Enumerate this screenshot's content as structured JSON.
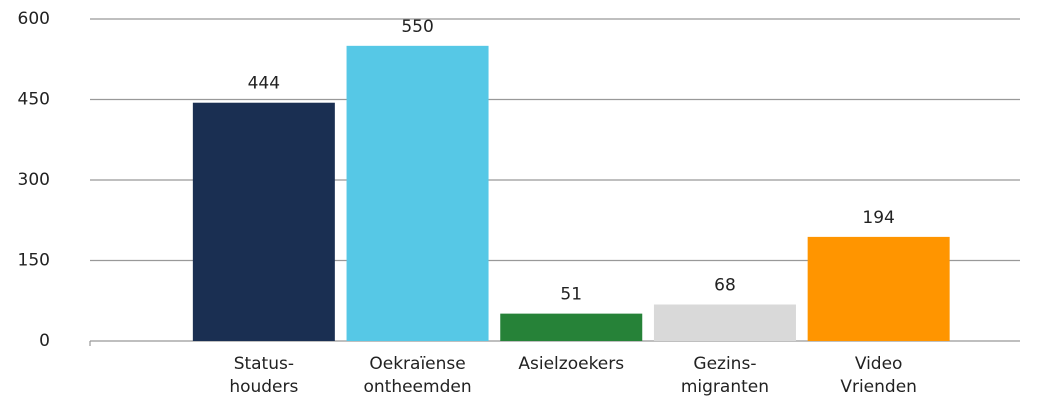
{
  "chart_data": {
    "type": "bar",
    "categories": [
      "Status-\nhouders",
      "Oekraïense\nontheemden",
      "Asielzoekers",
      "Gezins-\nmigranten",
      "Video\nVrienden"
    ],
    "values": [
      444,
      550,
      51,
      68,
      194
    ],
    "colors": [
      "#1a2f52",
      "#56c8e6",
      "#268238",
      "#d9d9d9",
      "#ff9500"
    ],
    "ylim": [
      0,
      600
    ],
    "yticks": [
      0,
      150,
      300,
      450,
      600
    ],
    "grid": true
  }
}
